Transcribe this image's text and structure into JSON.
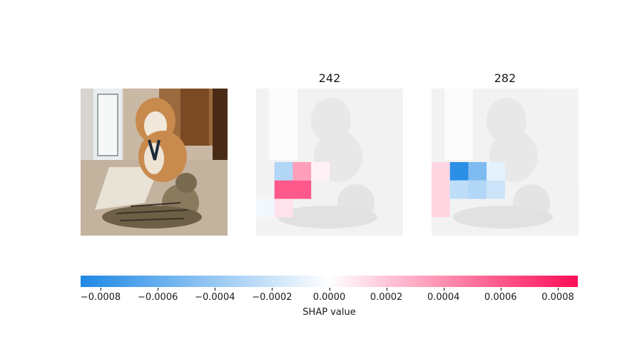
{
  "chart_data": {
    "type": "heatmap",
    "panels": [
      {
        "title": "",
        "kind": "original-image"
      },
      {
        "title": "242",
        "kind": "shap-overlay",
        "grid": {
          "rows": 8,
          "cols": 8
        },
        "cells": [
          {
            "row": 4,
            "col": 1,
            "value": -0.0003
          },
          {
            "row": 4,
            "col": 2,
            "value": 0.00035
          },
          {
            "row": 4,
            "col": 3,
            "value": 5e-05
          },
          {
            "row": 5,
            "col": 1,
            "value": 0.0006
          },
          {
            "row": 5,
            "col": 2,
            "value": 0.0006
          },
          {
            "row": 6,
            "col": 0,
            "value": -5e-05
          },
          {
            "row": 6,
            "col": 1,
            "value": 0.0001
          }
        ]
      },
      {
        "title": "282",
        "kind": "shap-overlay",
        "grid": {
          "rows": 8,
          "cols": 8
        },
        "cells": [
          {
            "row": 4,
            "col": 0,
            "value": 0.00015
          },
          {
            "row": 4,
            "col": 1,
            "value": -0.00082
          },
          {
            "row": 4,
            "col": 2,
            "value": -0.0005
          },
          {
            "row": 4,
            "col": 3,
            "value": -0.0001
          },
          {
            "row": 5,
            "col": 0,
            "value": 0.00015
          },
          {
            "row": 5,
            "col": 1,
            "value": -0.00025
          },
          {
            "row": 5,
            "col": 2,
            "value": -0.0003
          },
          {
            "row": 5,
            "col": 3,
            "value": -0.0002
          },
          {
            "row": 6,
            "col": 0,
            "value": 0.00015
          }
        ]
      }
    ],
    "colorbar": {
      "label": "SHAP value",
      "range": [
        -0.00087,
        0.00087
      ],
      "ticks": [
        -0.0008,
        -0.0006,
        -0.0004,
        -0.0002,
        0.0,
        0.0002,
        0.0004,
        0.0006,
        0.0008
      ],
      "tick_labels": [
        "−0.0008",
        "−0.0006",
        "−0.0004",
        "−0.0002",
        "0.0000",
        "0.0002",
        "0.0004",
        "0.0006",
        "0.0008"
      ],
      "colors": {
        "negative": "#1e88e5",
        "zero": "#ffffff",
        "positive": "#ff0d57"
      }
    }
  }
}
